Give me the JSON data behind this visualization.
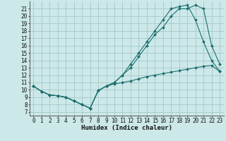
{
  "xlabel": "Humidex (Indice chaleur)",
  "background_color": "#cce8e8",
  "grid_color": "#aacccc",
  "line_color": "#1a6e6e",
  "xlim": [
    -0.5,
    23.5
  ],
  "ylim": [
    6.5,
    22.0
  ],
  "yticks": [
    7,
    8,
    9,
    10,
    11,
    12,
    13,
    14,
    15,
    16,
    17,
    18,
    19,
    20,
    21
  ],
  "xticks": [
    0,
    1,
    2,
    3,
    4,
    5,
    6,
    7,
    8,
    9,
    10,
    11,
    12,
    13,
    14,
    15,
    16,
    17,
    18,
    19,
    20,
    21,
    22,
    23
  ],
  "line1_x": [
    0,
    1,
    2,
    3,
    4,
    5,
    6,
    7,
    8,
    9,
    10,
    11,
    12,
    13,
    14,
    15,
    16,
    17,
    18,
    19,
    20,
    21,
    22,
    23
  ],
  "line1_y": [
    10.5,
    9.8,
    9.3,
    9.2,
    9.0,
    8.5,
    8.0,
    7.5,
    9.9,
    10.5,
    11.0,
    12.0,
    13.0,
    14.5,
    16.0,
    17.5,
    18.5,
    20.0,
    21.0,
    21.0,
    21.5,
    21.0,
    16.0,
    13.5
  ],
  "line2_x": [
    0,
    1,
    2,
    3,
    4,
    5,
    6,
    7,
    8,
    9,
    10,
    11,
    12,
    13,
    14,
    15,
    16,
    17,
    18,
    19,
    20,
    21,
    22,
    23
  ],
  "line2_y": [
    10.5,
    9.8,
    9.3,
    9.2,
    9.0,
    8.5,
    8.0,
    7.5,
    9.9,
    10.5,
    11.0,
    12.0,
    13.5,
    15.0,
    16.5,
    18.0,
    19.5,
    21.0,
    21.3,
    21.5,
    19.5,
    16.5,
    14.0,
    12.5
  ],
  "line3_x": [
    0,
    1,
    2,
    3,
    4,
    5,
    6,
    7,
    8,
    9,
    10,
    11,
    12,
    13,
    14,
    15,
    16,
    17,
    18,
    19,
    20,
    21,
    22,
    23
  ],
  "line3_y": [
    10.5,
    9.8,
    9.3,
    9.2,
    9.0,
    8.5,
    8.0,
    7.5,
    9.9,
    10.5,
    10.8,
    11.0,
    11.2,
    11.5,
    11.8,
    12.0,
    12.2,
    12.4,
    12.6,
    12.8,
    13.0,
    13.2,
    13.3,
    12.5
  ],
  "tick_fontsize": 5.5,
  "xlabel_fontsize": 6.5
}
